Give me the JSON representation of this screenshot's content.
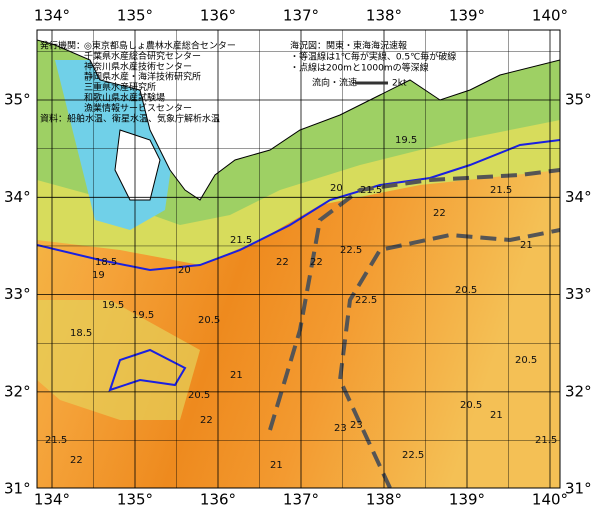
{
  "lon_ticks": [
    "134°",
    "135°",
    "136°",
    "137°",
    "138°",
    "139°",
    "140°"
  ],
  "lat_ticks": [
    "35°",
    "34°",
    "33°",
    "32°",
    "31°"
  ],
  "publishers": {
    "label": "発行機関：",
    "items": [
      "◎東京都島しょ農林水産総合センター",
      "千葉県水産総合研究センター",
      "神奈川県水産技術センター",
      "静岡県水産・海洋技術研究所",
      "三重県水産研究所",
      "和歌山県水産試験場",
      "漁業情報サービスセンター"
    ]
  },
  "source": "資料：船舶水温、衛星水温、気象庁解析水温",
  "notes": [
    "海況図：関東・東海海況速報",
    "・等温線は1℃毎が実線、0.5℃毎が破線",
    "・点線は200mと1000mの等深線"
  ],
  "legend": {
    "label": "流向・流速",
    "unit": "2kt"
  },
  "contour_labels": [
    "18.5",
    "19",
    "19.5",
    "18.5",
    "19.5",
    "20",
    "20.5",
    "20.5",
    "21",
    "21.5",
    "22",
    "22",
    "22.5",
    "22.5",
    "23",
    "22",
    "21.5",
    "21",
    "20.5",
    "20.5",
    "20.5",
    "21",
    "21.5",
    "22",
    "21",
    "22.5",
    "21.5",
    "23",
    "20",
    "21.5",
    "19.5",
    "22"
  ]
}
